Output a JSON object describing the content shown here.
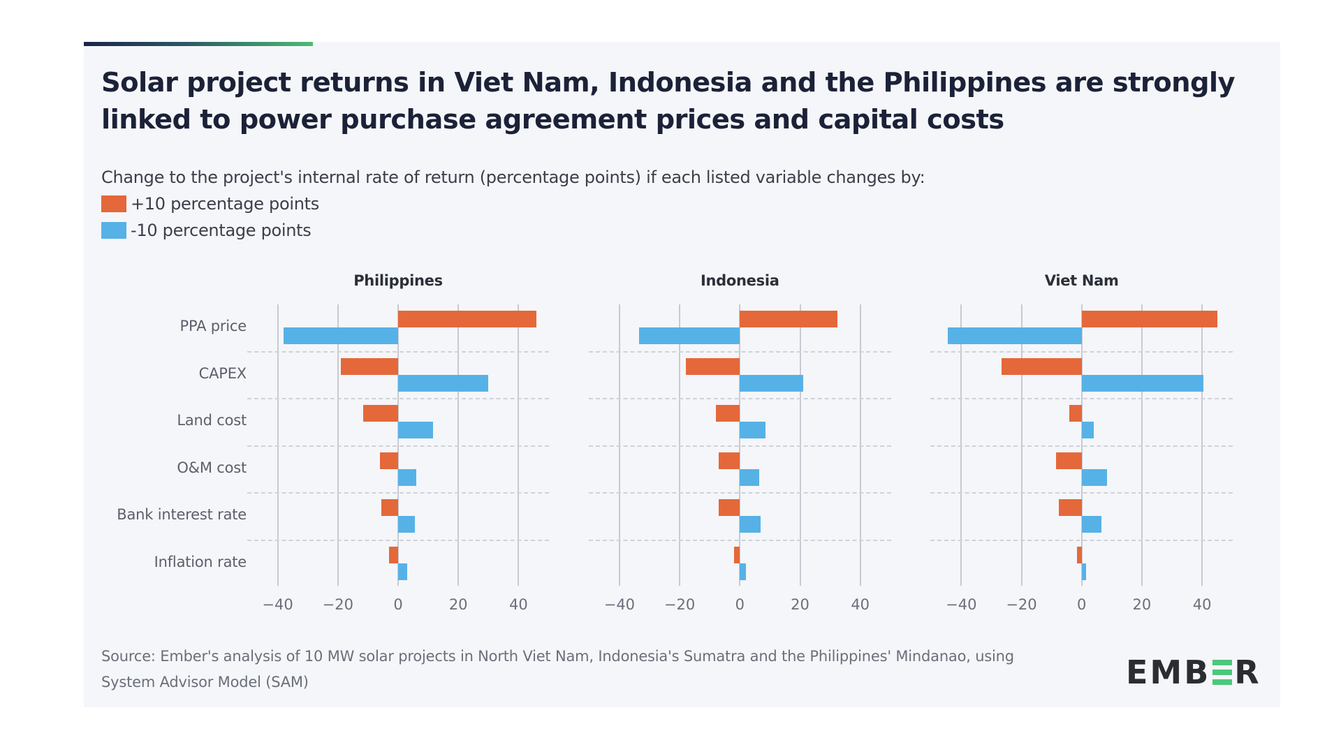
{
  "title": "Solar project returns in Viet Nam, Indonesia and the Philippines are strongly linked to power purchase agreement prices and capital costs",
  "subtitle": "Change to the project's internal rate of return (percentage points) if each listed variable changes by:",
  "legend": [
    {
      "label": "+10 percentage points",
      "color": "#e4683a"
    },
    {
      "label": "-10 percentage points",
      "color": "#56b2e6"
    }
  ],
  "source": "Source: Ember's analysis of 10 MW solar projects in North Viet Nam, Indonesia's Sumatra and the Philippines' Mindanao, using System Advisor Model (SAM)",
  "logo": {
    "text_before": "EMB",
    "text_after": "R",
    "accent_color": "#4cc77b"
  },
  "colors": {
    "positive": "#e4683a",
    "negative": "#56b2e6",
    "title": "#1b2238",
    "background": "#f5f6f9"
  },
  "chart_data": [
    {
      "type": "bar",
      "orientation": "horizontal",
      "title": "Philippines",
      "categories": [
        "PPA price",
        "CAPEX",
        "Land cost",
        "O&M cost",
        "Bank interest rate",
        "Inflation rate"
      ],
      "series": [
        {
          "name": "+10 percentage points",
          "values": [
            46,
            -19,
            -11.5,
            -6,
            -5.5,
            -3
          ]
        },
        {
          "name": "-10 percentage points",
          "values": [
            -38,
            30,
            11.5,
            6,
            5.5,
            3
          ]
        }
      ],
      "xlim": [
        -40,
        40
      ],
      "xticks": [
        -40,
        -20,
        0,
        20,
        40
      ],
      "xlabel": "",
      "ylabel": "",
      "grid": true
    },
    {
      "type": "bar",
      "orientation": "horizontal",
      "title": "Indonesia",
      "categories": [
        "PPA price",
        "CAPEX",
        "Land cost",
        "O&M cost",
        "Bank interest rate",
        "Inflation rate"
      ],
      "series": [
        {
          "name": "+10 percentage points",
          "values": [
            32.5,
            -18,
            -8,
            -7,
            -7,
            -2
          ]
        },
        {
          "name": "-10 percentage points",
          "values": [
            -33.5,
            21,
            8.5,
            6.5,
            7,
            2
          ]
        }
      ],
      "xlim": [
        -40,
        40
      ],
      "xticks": [
        -40,
        -20,
        0,
        20,
        40
      ],
      "xlabel": "",
      "ylabel": "",
      "grid": true
    },
    {
      "type": "bar",
      "orientation": "horizontal",
      "title": "Viet Nam",
      "categories": [
        "PPA price",
        "CAPEX",
        "Land cost",
        "O&M cost",
        "Bank interest rate",
        "Inflation rate"
      ],
      "series": [
        {
          "name": "+10 percentage points",
          "values": [
            45,
            -26.5,
            -4,
            -8.5,
            -7.5,
            -1.5
          ]
        },
        {
          "name": "-10 percentage points",
          "values": [
            -44.5,
            40.5,
            4,
            8.5,
            6.5,
            1.5
          ]
        }
      ],
      "xlim": [
        -40,
        40
      ],
      "xticks": [
        -40,
        -20,
        0,
        20,
        40
      ],
      "xlabel": "",
      "ylabel": "",
      "grid": true
    }
  ]
}
